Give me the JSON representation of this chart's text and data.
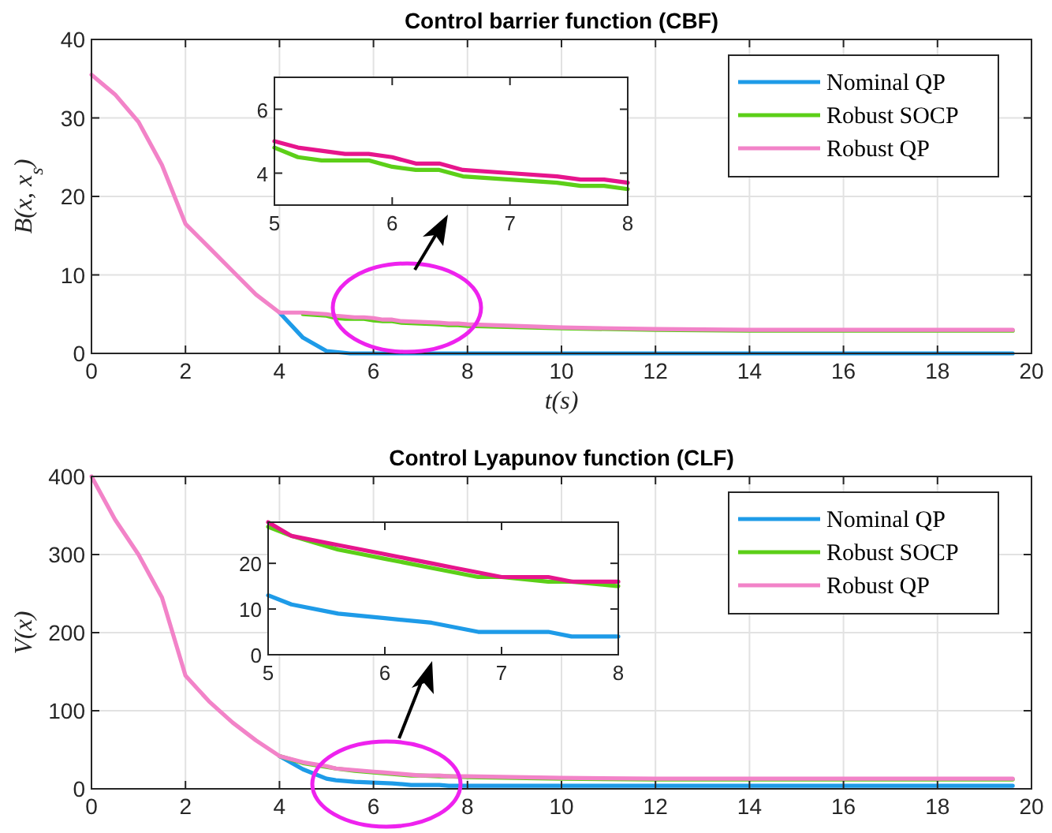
{
  "chart_data": [
    {
      "type": "line",
      "title": "Control barrier function (CBF)",
      "xlabel": "t(s)",
      "ylabel": "B(x, x$_{s}$)",
      "xlim": [
        0,
        20
      ],
      "ylim": [
        0,
        40
      ],
      "xticks": [
        0,
        2,
        4,
        6,
        8,
        10,
        12,
        14,
        16,
        18,
        20
      ],
      "yticks": [
        0,
        10,
        20,
        30,
        40
      ],
      "grid": true,
      "legend": "top right",
      "line_style": "solid",
      "series": [
        {
          "name": "Nominal QP",
          "color": "#1e9be8",
          "x": [
            4,
            4.5,
            5,
            5.5,
            6,
            7,
            10,
            19.6
          ],
          "values": [
            5.2,
            2,
            0.3,
            0,
            0,
            0,
            0,
            0
          ]
        },
        {
          "name": "Robust SOCP",
          "color": "#5ccf18",
          "x": [
            4.5,
            5,
            5.2,
            5.4,
            5.6,
            5.8,
            6,
            6.2,
            6.4,
            6.6,
            7,
            7.4,
            7.6,
            7.8,
            8,
            10,
            12,
            14,
            19.6
          ],
          "values": [
            5,
            4.8,
            4.5,
            4.4,
            4.4,
            4.4,
            4.2,
            4.1,
            4.1,
            3.9,
            3.8,
            3.7,
            3.6,
            3.6,
            3.5,
            3.2,
            3,
            2.9,
            2.9
          ]
        },
        {
          "name": "Robust QP",
          "color": "#f283c8",
          "x": [
            0,
            0.5,
            1,
            1.5,
            2,
            2.5,
            3,
            3.5,
            4,
            4.5,
            5,
            5.2,
            5.4,
            5.6,
            5.8,
            6,
            6.2,
            6.4,
            6.6,
            7,
            7.4,
            7.6,
            7.8,
            8,
            10,
            12,
            14,
            19.6
          ],
          "values": [
            35.5,
            33,
            29.5,
            24,
            16.5,
            13.5,
            10.5,
            7.5,
            5.2,
            5.2,
            5,
            4.8,
            4.7,
            4.6,
            4.6,
            4.5,
            4.3,
            4.3,
            4.1,
            4,
            3.9,
            3.8,
            3.8,
            3.7,
            3.3,
            3.1,
            3,
            3
          ]
        }
      ]
    },
    {
      "type": "line",
      "xlim": [
        5,
        8
      ],
      "ylim": [
        3,
        7
      ],
      "xticks": [
        5,
        6,
        7,
        8
      ],
      "yticks": [
        4,
        6
      ],
      "grid": false,
      "line_style": "solid",
      "series": [
        {
          "color": "#5ccf18",
          "x": [
            5,
            5.2,
            5.4,
            5.6,
            5.8,
            6,
            6.2,
            6.4,
            6.6,
            7,
            7.4,
            7.6,
            7.8,
            8
          ],
          "values": [
            4.8,
            4.5,
            4.4,
            4.4,
            4.4,
            4.2,
            4.1,
            4.1,
            3.9,
            3.8,
            3.7,
            3.6,
            3.6,
            3.5
          ]
        },
        {
          "color": "#e6158c",
          "x": [
            5,
            5.2,
            5.4,
            5.6,
            5.8,
            6,
            6.2,
            6.4,
            6.6,
            7,
            7.4,
            7.6,
            7.8,
            8
          ],
          "values": [
            5,
            4.8,
            4.7,
            4.6,
            4.6,
            4.5,
            4.3,
            4.3,
            4.1,
            4,
            3.9,
            3.8,
            3.8,
            3.7
          ]
        }
      ]
    },
    {
      "type": "line",
      "title": "Control Lyapunov function (CLF)",
      "ylabel": "V(x)",
      "xlim": [
        0,
        20
      ],
      "ylim": [
        0,
        400
      ],
      "xticks": [
        0,
        2,
        4,
        6,
        8,
        10,
        12,
        14,
        16,
        18,
        20
      ],
      "yticks": [
        0,
        100,
        200,
        300,
        400
      ],
      "grid": true,
      "legend": "top right",
      "line_style": "solid",
      "series": [
        {
          "name": "Nominal QP",
          "color": "#1e9be8",
          "x": [
            4,
            4.5,
            5,
            5.2,
            5.6,
            6,
            6.4,
            6.8,
            7,
            7.4,
            7.6,
            8,
            10,
            19.6
          ],
          "values": [
            42,
            25,
            13,
            11,
            9,
            8,
            7,
            5,
            5,
            5,
            4,
            4,
            4,
            4
          ]
        },
        {
          "name": "Robust SOCP",
          "color": "#5ccf18",
          "x": [
            4,
            4.5,
            5,
            5.2,
            5.6,
            5.8,
            6,
            6.2,
            6.4,
            6.6,
            6.8,
            7,
            7.4,
            7.6,
            8,
            10,
            12,
            19.6
          ],
          "values": [
            42,
            33,
            28,
            26,
            23,
            22,
            21,
            20,
            19,
            18,
            17,
            17,
            16,
            16,
            15,
            13,
            12,
            12
          ]
        },
        {
          "name": "Robust QP",
          "color": "#f283c8",
          "x": [
            0,
            0.5,
            1,
            1.5,
            2,
            2.5,
            3,
            3.5,
            4,
            4.5,
            5,
            5.2,
            5.6,
            5.8,
            6,
            6.2,
            6.4,
            6.6,
            6.8,
            7,
            7.4,
            7.6,
            8,
            10,
            12,
            19.6
          ],
          "values": [
            400,
            345,
            300,
            245,
            145,
            112,
            85,
            62,
            42,
            34,
            29,
            26,
            24,
            23,
            22,
            21,
            20,
            19,
            18,
            17,
            17,
            16,
            16,
            14,
            13,
            13
          ]
        }
      ]
    },
    {
      "type": "line",
      "xlim": [
        5,
        8
      ],
      "ylim": [
        0,
        29
      ],
      "xticks": [
        5,
        6,
        7,
        8
      ],
      "yticks": [
        0,
        10,
        20
      ],
      "grid": false,
      "line_style": "solid",
      "series": [
        {
          "color": "#1e9be8",
          "x": [
            5,
            5.2,
            5.6,
            6,
            6.4,
            6.8,
            7,
            7.4,
            7.6,
            8
          ],
          "values": [
            13,
            11,
            9,
            8,
            7,
            5,
            5,
            5,
            4,
            4
          ]
        },
        {
          "color": "#5ccf18",
          "x": [
            5,
            5.2,
            5.6,
            5.8,
            6,
            6.2,
            6.4,
            6.6,
            6.8,
            7,
            7.4,
            7.6,
            8
          ],
          "values": [
            28,
            26,
            23,
            22,
            21,
            20,
            19,
            18,
            17,
            17,
            16,
            16,
            15
          ]
        },
        {
          "color": "#e6158c",
          "x": [
            5,
            5.2,
            5.6,
            5.8,
            6,
            6.2,
            6.4,
            6.6,
            6.8,
            7,
            7.4,
            7.6,
            8
          ],
          "values": [
            29,
            26,
            24,
            23,
            22,
            21,
            20,
            19,
            18,
            17,
            17,
            16,
            16
          ]
        }
      ]
    }
  ]
}
